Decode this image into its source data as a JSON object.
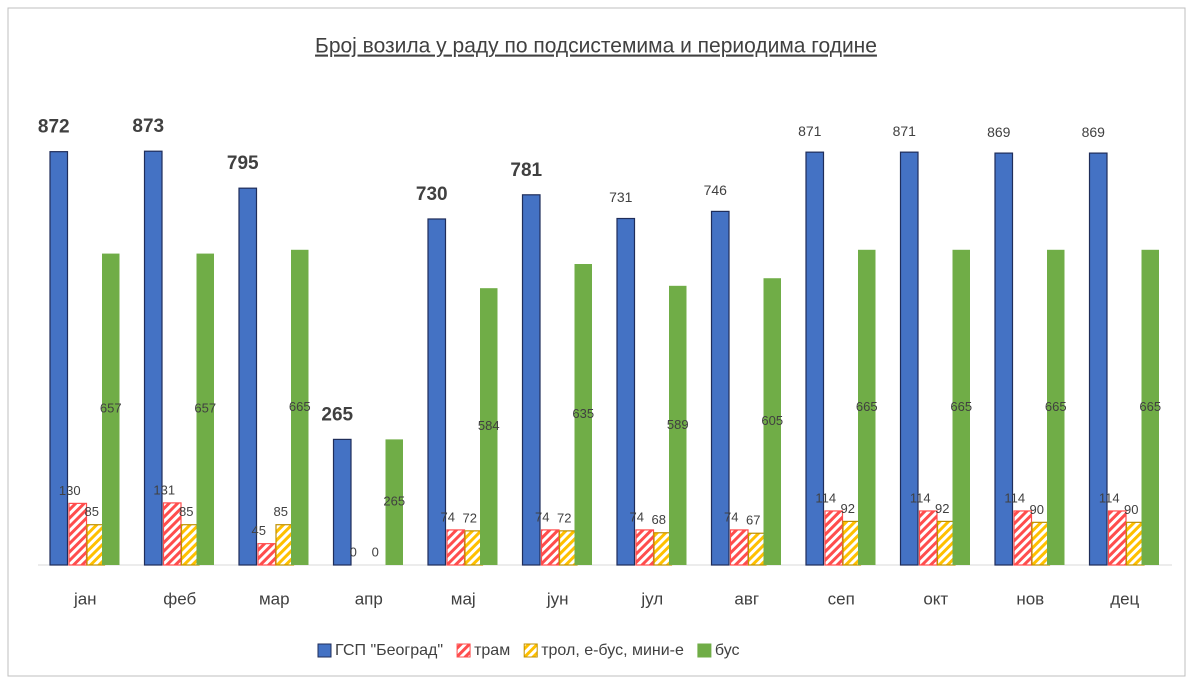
{
  "chart_data": {
    "type": "bar",
    "title": "Број возила у раду по подсистемима и периодима године",
    "categories": [
      "јан",
      "феб",
      "мар",
      "апр",
      "мај",
      "јун",
      "јул",
      "авг",
      "сеп",
      "окт",
      "нов",
      "дец"
    ],
    "series": [
      {
        "name": "ГСП \"Београд\"",
        "color": "#4472c4",
        "values": [
          872,
          873,
          795,
          265,
          730,
          781,
          731,
          746,
          871,
          871,
          869,
          869
        ]
      },
      {
        "name": "трам",
        "color": "#ff4d4d",
        "values": [
          130,
          131,
          45,
          0,
          74,
          74,
          74,
          74,
          114,
          114,
          114,
          114
        ]
      },
      {
        "name": "трол, е-бус, мини-е",
        "color": "#ffc000",
        "values": [
          85,
          85,
          85,
          0,
          72,
          72,
          68,
          67,
          92,
          92,
          90,
          90
        ]
      },
      {
        "name": "бус",
        "color": "#70ad47",
        "values": [
          657,
          657,
          665,
          265,
          584,
          635,
          589,
          605,
          665,
          665,
          665,
          665
        ]
      }
    ],
    "ylim": [
      0,
      1000
    ],
    "legend": "bottom"
  }
}
